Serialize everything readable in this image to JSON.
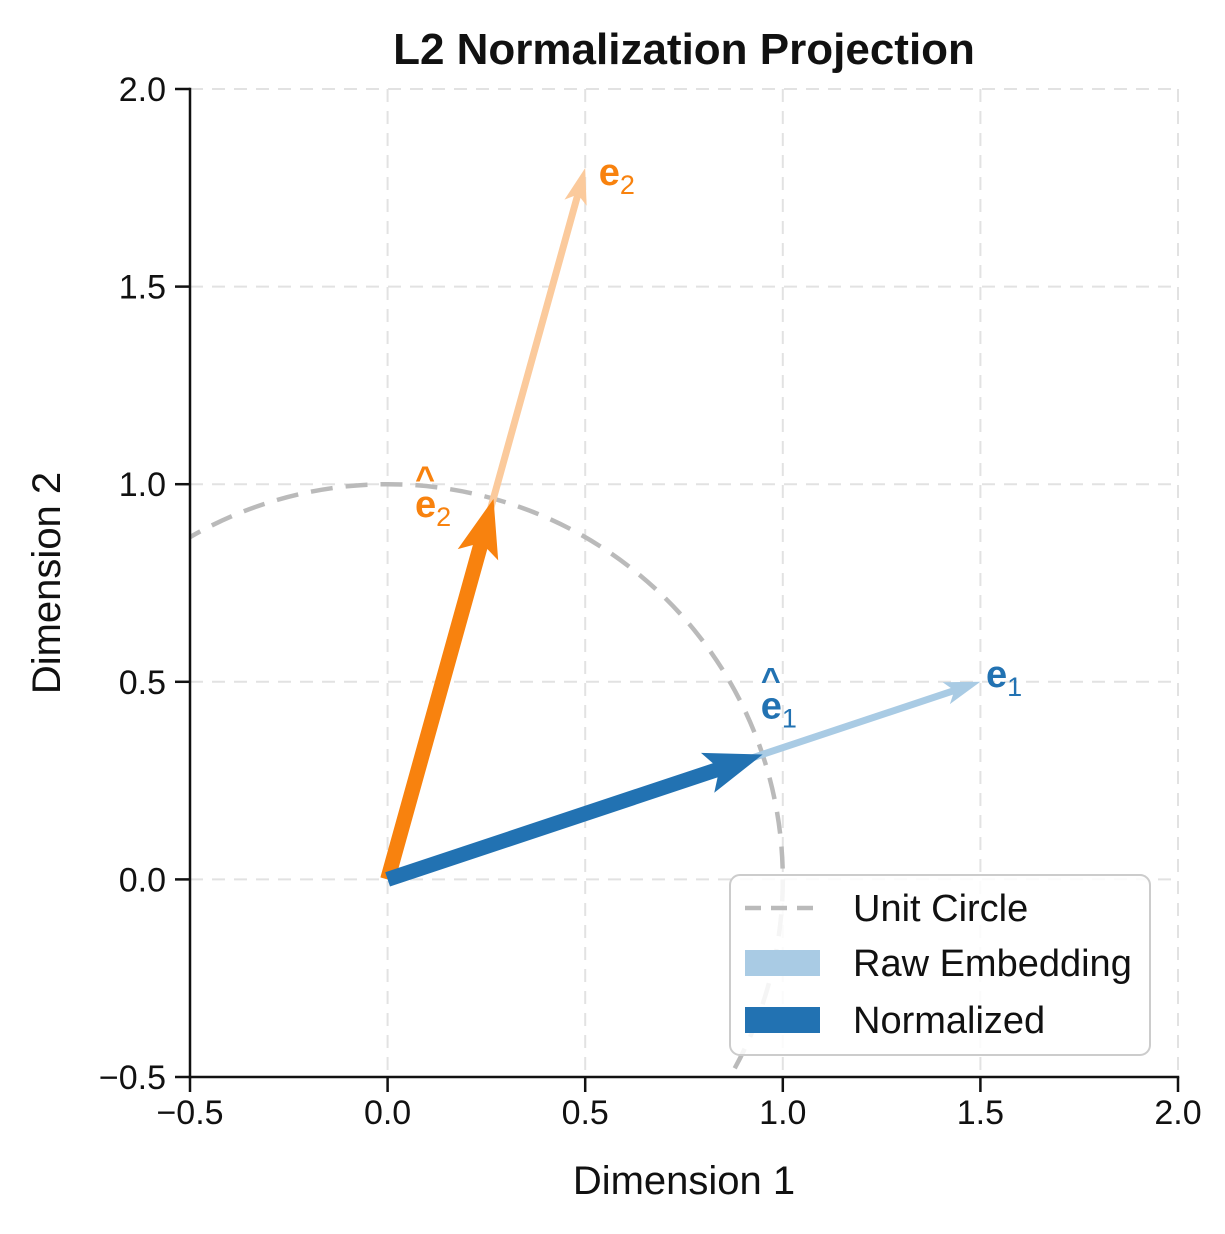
{
  "chart_data": {
    "type": "scatter",
    "subtype": "quiver-vector-plot",
    "title": "L2 Normalization Projection",
    "xlabel": "Dimension 1",
    "ylabel": "Dimension 2",
    "xlim": [
      -0.5,
      2.0
    ],
    "ylim": [
      -0.5,
      2.0
    ],
    "grid": true,
    "grid_style": "dashed",
    "xticks": {
      "values": [
        -0.5,
        0.0,
        0.5,
        1.0,
        1.5,
        2.0
      ],
      "labels": [
        "−0.5",
        "0.0",
        "0.5",
        "1.0",
        "1.5",
        "2.0"
      ]
    },
    "yticks": {
      "values": [
        -0.5,
        0.0,
        0.5,
        1.0,
        1.5,
        2.0
      ],
      "labels": [
        "−0.5",
        "0.0",
        "0.5",
        "1.0",
        "1.5",
        "2.0"
      ]
    },
    "unit_circle": {
      "center": [
        0,
        0
      ],
      "radius": 1.0,
      "style": "dashed",
      "color": "#bababa"
    },
    "vectors": [
      {
        "name": "e2-raw",
        "from": [
          0,
          0
        ],
        "to": [
          0.5,
          1.8
        ],
        "weight": "thin",
        "color": "#fbca9c",
        "label": {
          "base": "e",
          "sub": "2",
          "hat": "",
          "pos": [
            0.58,
            1.79
          ],
          "color": "#f8820e"
        }
      },
      {
        "name": "e1-raw",
        "from": [
          0,
          0
        ],
        "to": [
          1.5,
          0.5
        ],
        "weight": "thin",
        "color": "#a9cbe4",
        "label": {
          "base": "e",
          "sub": "1",
          "hat": "",
          "pos": [
            1.56,
            0.52
          ],
          "color": "#2272b2"
        }
      },
      {
        "name": "e2-normalized",
        "from": [
          0,
          0
        ],
        "to": [
          0.268,
          0.963
        ],
        "weight": "thick",
        "color": "#f8820e",
        "label": {
          "base": "e",
          "sub": "2",
          "hat": "^",
          "pos": [
            0.115,
            0.95
          ],
          "color": "#f8820e"
        }
      },
      {
        "name": "e1-normalized",
        "from": [
          0,
          0
        ],
        "to": [
          0.949,
          0.316
        ],
        "weight": "thick",
        "color": "#2272b2",
        "label": {
          "base": "e",
          "sub": "1",
          "hat": "^",
          "pos": [
            0.99,
            0.44
          ],
          "color": "#2272b2"
        }
      }
    ],
    "legend": {
      "position": "lower right",
      "items": [
        {
          "label": "Unit Circle",
          "swatch": "dashed-line",
          "color": "#bababa"
        },
        {
          "label": "Raw Embedding",
          "swatch": "patch",
          "color": "#a9cbe4"
        },
        {
          "label": "Normalized",
          "swatch": "patch",
          "color": "#2272b2"
        }
      ]
    },
    "colors": {
      "background": "#ffffff",
      "text": "#111111",
      "spine": "#111111",
      "grid": "#e2e2e2",
      "raw_embedding_blue": "#a9cbe4",
      "normalized_blue": "#2272b2",
      "raw_embedding_orange": "#fbca9c",
      "normalized_orange": "#f8820e",
      "unit_circle": "#bababa",
      "legend_border": "#cccccc"
    }
  }
}
